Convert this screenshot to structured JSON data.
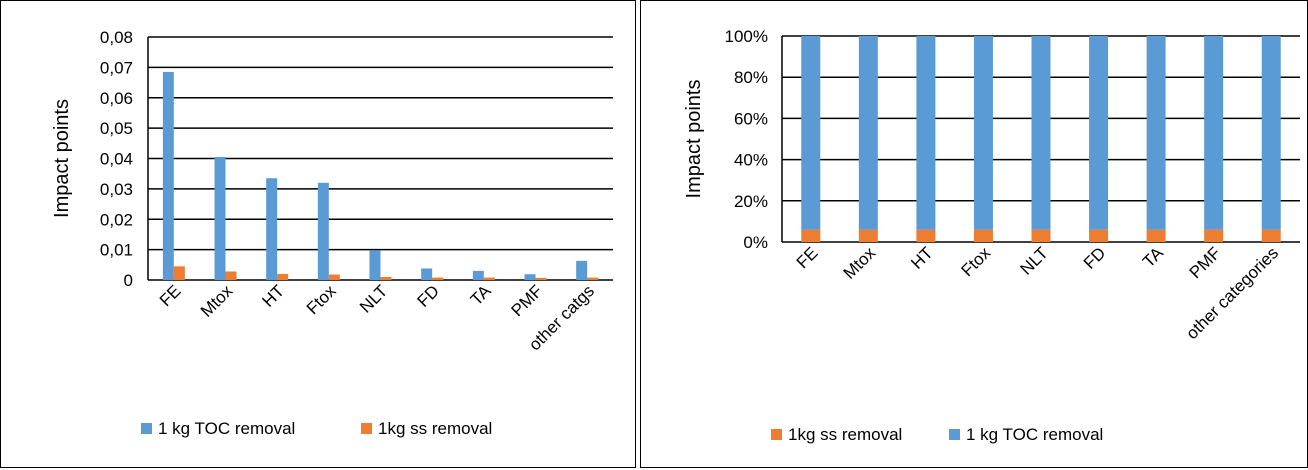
{
  "chart_data": [
    {
      "type": "bar",
      "title": "",
      "xlabel": "",
      "ylabel": "Impact points",
      "ylim": [
        0,
        0.08
      ],
      "yticks": [
        "0",
        "0,01",
        "0,02",
        "0,03",
        "0,04",
        "0,05",
        "0,06",
        "0,07",
        "0,08"
      ],
      "categories": [
        "FE",
        "Mtox",
        "HT",
        "Ftox",
        "NLT",
        "FD",
        "TA",
        "PMF",
        "other catgs"
      ],
      "series": [
        {
          "name": "1 kg TOC removal",
          "color": "#5B9BD5",
          "values": [
            0.0685,
            0.0405,
            0.0335,
            0.032,
            0.0098,
            0.0038,
            0.003,
            0.0019,
            0.0063
          ]
        },
        {
          "name": "1kg ss removal",
          "color": "#ED7D31",
          "values": [
            0.0045,
            0.0028,
            0.002,
            0.0018,
            0.001,
            0.0008,
            0.0008,
            0.0007,
            0.0008
          ]
        }
      ],
      "grid": true,
      "legend": "bottom"
    },
    {
      "type": "bar",
      "stacked": true,
      "title": "",
      "xlabel": "",
      "ylabel": "Impact points",
      "ylim": [
        0,
        100
      ],
      "yticks": [
        "0%",
        "20%",
        "40%",
        "60%",
        "80%",
        "100%"
      ],
      "categories": [
        "FE",
        "Mtox",
        "HT",
        "Ftox",
        "NLT",
        "FD",
        "TA",
        "PMF",
        "other categories"
      ],
      "series": [
        {
          "name": "1kg ss removal",
          "color": "#ED7D31",
          "values": [
            6,
            6,
            6,
            6,
            6,
            6,
            6,
            6,
            6
          ]
        },
        {
          "name": "1 kg TOC removal",
          "color": "#5B9BD5",
          "values": [
            94,
            94,
            94,
            94,
            94,
            94,
            94,
            94,
            94
          ]
        }
      ],
      "grid": true,
      "legend": "bottom"
    }
  ]
}
